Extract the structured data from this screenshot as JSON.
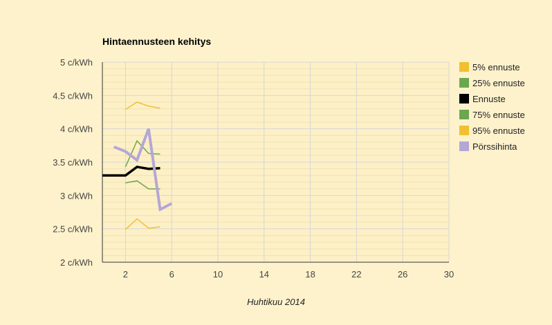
{
  "chart_data": {
    "type": "line",
    "title": "Hintaennusteen kehitys",
    "xlabel": "Huhtikuu 2014",
    "ylabel": "",
    "xlim": [
      0,
      30
    ],
    "ylim": [
      2,
      5
    ],
    "x_ticks": [
      "2",
      "6",
      "10",
      "14",
      "18",
      "22",
      "26",
      "30"
    ],
    "y_ticks": [
      "2 c/kWh",
      "2.5 c/kWh",
      "3 c/kWh",
      "3.5 c/kWh",
      "4 c/kWh",
      "4.5 c/kWh",
      "5 c/kWh"
    ],
    "grid": true,
    "legend_position": "right",
    "series": [
      {
        "name": "5% ennuste",
        "color": "#f0c030",
        "width": 1.5,
        "points": [
          [
            2,
            2.49
          ],
          [
            3,
            2.65
          ],
          [
            4,
            2.51
          ],
          [
            5,
            2.53
          ]
        ]
      },
      {
        "name": "25% ennuste",
        "color": "#6aa84f",
        "width": 1.5,
        "points": [
          [
            2,
            3.19
          ],
          [
            3,
            3.22
          ],
          [
            4,
            3.1
          ],
          [
            5,
            3.1
          ]
        ]
      },
      {
        "name": "Ennuste",
        "color": "#000000",
        "width": 3.5,
        "points": [
          [
            0,
            3.3
          ],
          [
            2,
            3.3
          ],
          [
            3,
            3.43
          ],
          [
            4,
            3.4
          ],
          [
            5,
            3.41
          ]
        ]
      },
      {
        "name": "75% ennuste",
        "color": "#6aa84f",
        "width": 1.5,
        "points": [
          [
            2,
            3.43
          ],
          [
            3,
            3.82
          ],
          [
            4,
            3.63
          ],
          [
            5,
            3.62
          ]
        ]
      },
      {
        "name": "95% ennuste",
        "color": "#f0c030",
        "width": 1.5,
        "points": [
          [
            2,
            4.29
          ],
          [
            3,
            4.4
          ],
          [
            4,
            4.34
          ],
          [
            5,
            4.31
          ]
        ]
      },
      {
        "name": "Pörssihinta",
        "color": "#b4a7d6",
        "width": 4,
        "points": [
          [
            1,
            3.73
          ],
          [
            2,
            3.66
          ],
          [
            3,
            3.53
          ],
          [
            4,
            4.0
          ],
          [
            5,
            2.79
          ],
          [
            6,
            2.88
          ]
        ]
      }
    ]
  }
}
